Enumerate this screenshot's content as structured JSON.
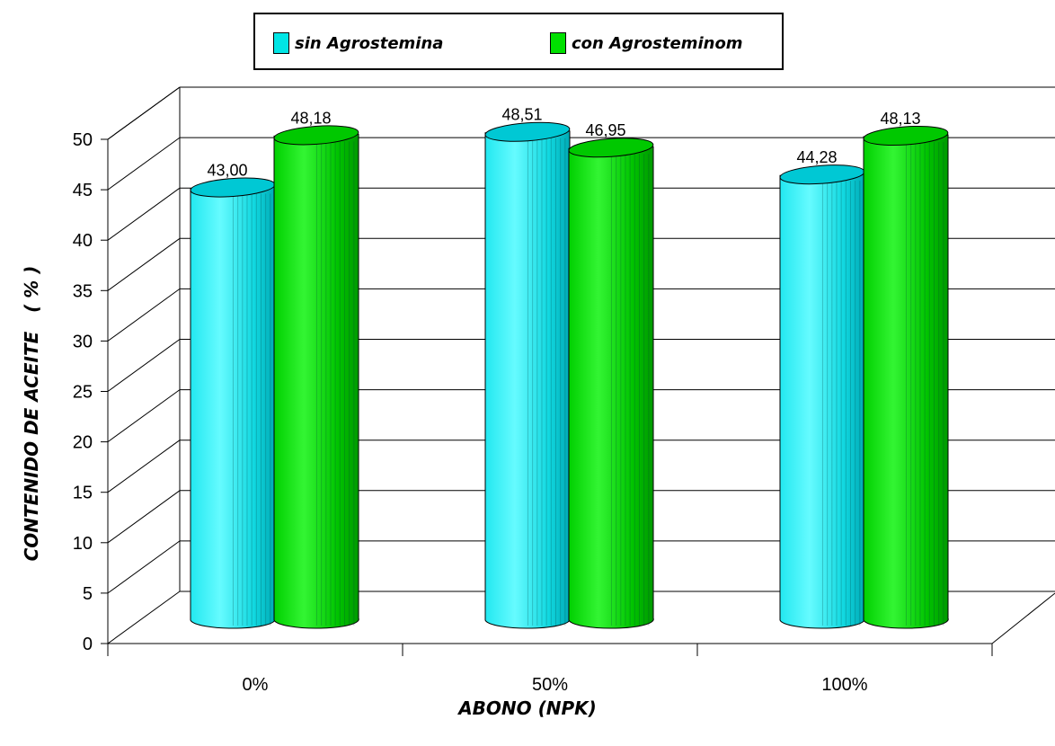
{
  "chart_data": {
    "type": "bar",
    "style": "3d-cylinder",
    "categories": [
      "0%",
      "50%",
      "100%"
    ],
    "series": [
      {
        "name": "sin Agrostemina",
        "color": "#00e5e5",
        "values": [
          43.0,
          48.51,
          44.28
        ],
        "labels": [
          "43,00",
          "48,51",
          "44,28"
        ]
      },
      {
        "name": "con Agrosteminom",
        "color": "#00e000",
        "values": [
          48.18,
          46.95,
          48.13
        ],
        "labels": [
          "48,18",
          "46,95",
          "48,13"
        ]
      }
    ],
    "xlabel": "ABONO (NPK)",
    "ylabel": "CONTENIDO DE ACEITE   ( % )",
    "ylim": [
      0,
      50
    ],
    "yticks": [
      "0",
      "5",
      "10",
      "15",
      "20",
      "25",
      "30",
      "35",
      "40",
      "45",
      "50"
    ],
    "grid": true,
    "legend_position": "top"
  }
}
